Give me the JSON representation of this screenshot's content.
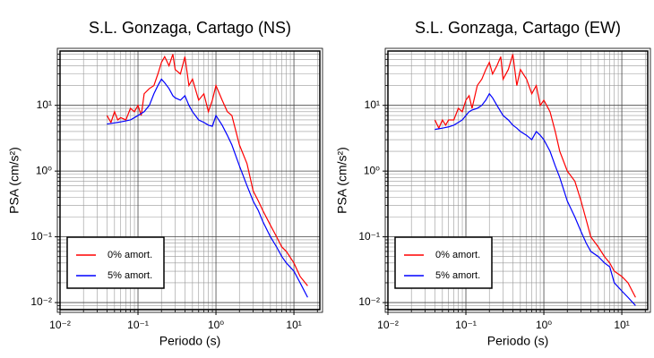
{
  "chart_data": [
    {
      "type": "line",
      "title": "S.L. Gonzaga, Cartago (NS)",
      "xlabel": "Periodo (s)",
      "ylabel": "PSA (cm/s²)",
      "log_x": true,
      "log_y": true,
      "grid": true,
      "legend": "lower left",
      "xlim": [
        0.01,
        21.5
      ],
      "ylim": [
        0.0078,
        67
      ],
      "xticks": [
        {
          "value": 0.01,
          "label": "10⁻²"
        },
        {
          "value": 0.1,
          "label": "10⁻¹"
        },
        {
          "value": 1,
          "label": "10⁰"
        },
        {
          "value": 10,
          "label": "10¹"
        }
      ],
      "yticks": [
        {
          "value": 0.01,
          "label": "10⁻²"
        },
        {
          "value": 0.1,
          "label": "10⁻¹"
        },
        {
          "value": 1,
          "label": "10⁰"
        },
        {
          "value": 10,
          "label": "10¹"
        }
      ],
      "xminorticks": [
        0.02,
        0.03,
        0.04,
        0.05,
        0.06,
        0.07,
        0.08,
        0.09,
        0.2,
        0.3,
        0.4,
        0.5,
        0.6,
        0.7,
        0.8,
        0.9,
        2,
        3,
        4,
        5,
        6,
        7,
        8,
        9,
        20
      ],
      "yminorticks": [
        0.008,
        0.009,
        0.02,
        0.03,
        0.04,
        0.05,
        0.06,
        0.07,
        0.08,
        0.09,
        0.2,
        0.3,
        0.4,
        0.5,
        0.6,
        0.7,
        0.8,
        0.9,
        2,
        3,
        4,
        5,
        6,
        7,
        8,
        9,
        20,
        30,
        40,
        50,
        60
      ],
      "x": [
        0.04,
        0.045,
        0.05,
        0.055,
        0.06,
        0.07,
        0.08,
        0.09,
        0.1,
        0.11,
        0.12,
        0.14,
        0.16,
        0.18,
        0.2,
        0.22,
        0.25,
        0.28,
        0.3,
        0.35,
        0.4,
        0.45,
        0.5,
        0.6,
        0.7,
        0.8,
        0.9,
        1.0,
        1.2,
        1.4,
        1.6,
        2,
        2.5,
        3,
        3.5,
        4,
        5,
        6,
        7,
        8,
        10,
        12,
        15
      ],
      "series": [
        {
          "name": "0% amort.",
          "color": "#ff0000",
          "values": [
            7,
            5.5,
            8,
            6,
            6.5,
            6,
            9,
            8,
            10,
            7,
            15,
            18,
            20,
            30,
            45,
            55,
            40,
            60,
            35,
            30,
            55,
            20,
            25,
            12,
            15,
            8,
            12,
            20,
            12,
            8,
            7,
            2.5,
            1.3,
            0.5,
            0.35,
            0.25,
            0.15,
            0.1,
            0.07,
            0.06,
            0.04,
            0.025,
            0.018
          ]
        },
        {
          "name": "5% amort.",
          "color": "#0000ff",
          "values": [
            5.2,
            5.3,
            5.4,
            5.5,
            5.6,
            5.8,
            6,
            6.5,
            7,
            7.5,
            8,
            10,
            15,
            20,
            25,
            22,
            18,
            14,
            13,
            12,
            14,
            10,
            8,
            6,
            5.5,
            5,
            4.8,
            7,
            5,
            3.5,
            2.5,
            1.2,
            0.6,
            0.35,
            0.25,
            0.17,
            0.1,
            0.07,
            0.05,
            0.04,
            0.03,
            0.02,
            0.012
          ]
        }
      ]
    },
    {
      "type": "line",
      "title": "S.L. Gonzaga, Cartago (EW)",
      "xlabel": "Periodo (s)",
      "ylabel": "PSA (cm/s²)",
      "log_x": true,
      "log_y": true,
      "grid": true,
      "legend": "lower left",
      "xlim": [
        0.01,
        21.5
      ],
      "ylim": [
        0.0078,
        67
      ],
      "xticks": [
        {
          "value": 0.01,
          "label": "10⁻²"
        },
        {
          "value": 0.1,
          "label": "10⁻¹"
        },
        {
          "value": 1,
          "label": "10⁰"
        },
        {
          "value": 10,
          "label": "10¹"
        }
      ],
      "yticks": [
        {
          "value": 0.01,
          "label": "10⁻²"
        },
        {
          "value": 0.1,
          "label": "10⁻¹"
        },
        {
          "value": 1,
          "label": "10⁰"
        },
        {
          "value": 10,
          "label": "10¹"
        }
      ],
      "xminorticks": [
        0.02,
        0.03,
        0.04,
        0.05,
        0.06,
        0.07,
        0.08,
        0.09,
        0.2,
        0.3,
        0.4,
        0.5,
        0.6,
        0.7,
        0.8,
        0.9,
        2,
        3,
        4,
        5,
        6,
        7,
        8,
        9,
        20
      ],
      "yminorticks": [
        0.008,
        0.009,
        0.02,
        0.03,
        0.04,
        0.05,
        0.06,
        0.07,
        0.08,
        0.09,
        0.2,
        0.3,
        0.4,
        0.5,
        0.6,
        0.7,
        0.8,
        0.9,
        2,
        3,
        4,
        5,
        6,
        7,
        8,
        9,
        20,
        30,
        40,
        50,
        60
      ],
      "x": [
        0.04,
        0.045,
        0.05,
        0.055,
        0.06,
        0.07,
        0.08,
        0.09,
        0.1,
        0.11,
        0.12,
        0.14,
        0.16,
        0.18,
        0.2,
        0.22,
        0.25,
        0.28,
        0.3,
        0.35,
        0.4,
        0.45,
        0.5,
        0.6,
        0.7,
        0.8,
        0.9,
        1.0,
        1.2,
        1.4,
        1.6,
        2,
        2.5,
        3,
        3.5,
        4,
        5,
        6,
        7,
        8,
        10,
        12,
        15
      ],
      "series": [
        {
          "name": "0% amort.",
          "color": "#ff0000",
          "values": [
            6,
            4.5,
            6,
            5,
            6,
            6,
            9,
            8,
            12,
            14,
            9,
            20,
            25,
            35,
            45,
            30,
            40,
            55,
            25,
            35,
            60,
            20,
            35,
            25,
            15,
            20,
            10,
            12,
            8,
            4,
            2,
            1,
            0.7,
            0.35,
            0.18,
            0.1,
            0.07,
            0.05,
            0.04,
            0.03,
            0.025,
            0.02,
            0.012
          ]
        },
        {
          "name": "5% amort.",
          "color": "#0000ff",
          "values": [
            4.3,
            4.4,
            4.5,
            4.6,
            4.7,
            5,
            5.5,
            6,
            7,
            8,
            8.5,
            9,
            10,
            12,
            15,
            13,
            10,
            8,
            7,
            6,
            5,
            4.5,
            4,
            3.5,
            3,
            4,
            3.5,
            3,
            2,
            1.2,
            0.8,
            0.35,
            0.2,
            0.12,
            0.08,
            0.06,
            0.05,
            0.04,
            0.035,
            0.02,
            0.015,
            0.012,
            0.009
          ]
        }
      ]
    }
  ]
}
